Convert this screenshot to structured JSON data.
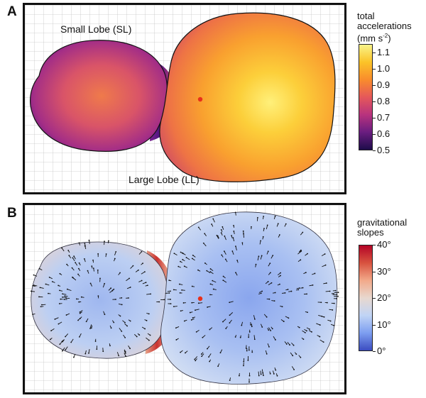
{
  "panel_a": {
    "letter": "A",
    "small_lobe_label": "Small Lobe (SL)",
    "large_lobe_label": "Large Lobe (LL)",
    "colorbar": {
      "title_line1": "total",
      "title_line2": "accelerations",
      "title_line3_pre": "(mm s",
      "title_line3_sup": "-2",
      "title_line3_post": ")",
      "ticks": [
        "1.1",
        "1.0",
        "0.9",
        "0.8",
        "0.7",
        "0.6",
        "0.5"
      ],
      "range": [
        0.5,
        1.15
      ],
      "colors": [
        "#1d0c4a",
        "#6a1d80",
        "#b8337e",
        "#e5585a",
        "#f98c2c",
        "#fbc328",
        "#f8f48a"
      ]
    }
  },
  "panel_b": {
    "letter": "B",
    "colorbar": {
      "title_line1": "gravitational",
      "title_line2": "slopes",
      "ticks": [
        "40°",
        "30°",
        "20°",
        "10°",
        "0°"
      ],
      "range": [
        0,
        40
      ],
      "colors": [
        "#3b4cc0",
        "#7d9ef0",
        "#c0d4f5",
        "#e8d8cf",
        "#f2a98a",
        "#d8533f",
        "#b40426"
      ]
    }
  },
  "center_of_mass_color": "#e8301b"
}
